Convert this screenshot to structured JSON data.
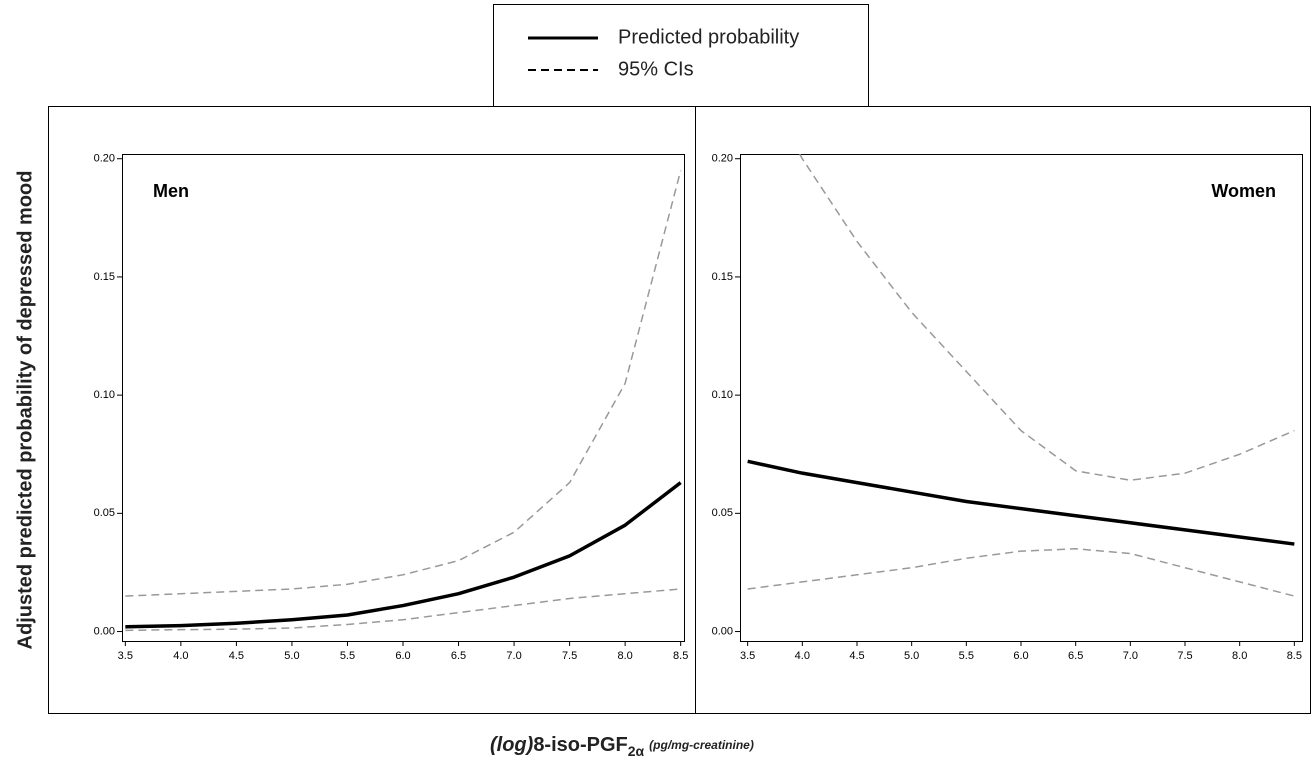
{
  "y_label": "Adjusted predicted probability of depressed mood",
  "x_label": {
    "prefix": "(log)",
    "main": "8-iso-PGF",
    "subscript": "2α",
    "unit": "(pg/mg-creatinine)"
  },
  "chart_data": [
    {
      "type": "line",
      "annotation": "Men",
      "annotation_corner": "top-left",
      "x": [
        3.5,
        4.0,
        4.5,
        5.0,
        5.5,
        6.0,
        6.5,
        7.0,
        7.5,
        8.0,
        8.5
      ],
      "series": [
        {
          "name": "Predicted probability",
          "color": "#000000",
          "line_style": "solid",
          "values": [
            0.002,
            0.0025,
            0.0035,
            0.005,
            0.007,
            0.011,
            0.016,
            0.023,
            0.032,
            0.045,
            0.063
          ]
        },
        {
          "name": "95% CIs",
          "color": "#999999",
          "line_style": "dashed",
          "values": [
            0.015,
            0.016,
            0.017,
            0.018,
            0.02,
            0.024,
            0.03,
            0.042,
            0.063,
            0.105,
            0.195
          ]
        },
        {
          "name": "95% CIs",
          "color": "#999999",
          "line_style": "dashed",
          "values": [
            0.0005,
            0.0008,
            0.001,
            0.0015,
            0.003,
            0.005,
            0.008,
            0.011,
            0.014,
            0.016,
            0.018
          ]
        }
      ],
      "xlim": [
        3.47,
        8.53
      ],
      "ylim": [
        -0.004,
        0.202
      ],
      "xticks": [
        3.5,
        {
          "value": 4,
          "label": "4.0"
        },
        4.5,
        {
          "value": 5,
          "label": "5.0"
        },
        5.5,
        {
          "value": 6,
          "label": "6.0"
        },
        6.5,
        {
          "value": 7,
          "label": "7.0"
        },
        7.5,
        {
          "value": 8,
          "label": "8.0"
        },
        8.5
      ],
      "yticks": [
        {
          "value": 0,
          "label": "0.00"
        },
        0.05,
        {
          "value": 0.1,
          "label": "0.10"
        },
        0.15,
        {
          "value": 0.2,
          "label": "0.20"
        }
      ]
    },
    {
      "type": "line",
      "annotation": "Women",
      "annotation_corner": "top-right",
      "x": [
        3.5,
        4.0,
        4.5,
        5.0,
        5.5,
        6.0,
        6.5,
        7.0,
        7.5,
        8.0,
        8.5
      ],
      "series": [
        {
          "name": "Predicted probability",
          "color": "#000000",
          "line_style": "solid",
          "values": [
            0.072,
            0.067,
            0.063,
            0.059,
            0.055,
            0.052,
            0.049,
            0.046,
            0.043,
            0.04,
            0.037
          ]
        },
        {
          "name": "95% CIs",
          "color": "#999999",
          "line_style": "dashed",
          "values": [
            0.24,
            0.2,
            0.165,
            0.135,
            0.11,
            0.085,
            0.068,
            0.064,
            0.067,
            0.075,
            0.085
          ]
        },
        {
          "name": "95% CIs",
          "color": "#999999",
          "line_style": "dashed",
          "values": [
            0.018,
            0.021,
            0.024,
            0.027,
            0.031,
            0.034,
            0.035,
            0.033,
            0.027,
            0.021,
            0.015
          ]
        }
      ],
      "xlim": [
        3.43,
        8.57
      ],
      "ylim": [
        -0.004,
        0.202
      ],
      "xticks": [
        3.5,
        {
          "value": 4,
          "label": "4.0"
        },
        4.5,
        {
          "value": 5,
          "label": "5.0"
        },
        5.5,
        {
          "value": 6,
          "label": "6.0"
        },
        6.5,
        {
          "value": 7,
          "label": "7.0"
        },
        7.5,
        {
          "value": 8,
          "label": "8.0"
        },
        8.5
      ],
      "yticks": [
        {
          "value": 0,
          "label": "0.00"
        },
        0.05,
        {
          "value": 0.1,
          "label": "0.10"
        },
        0.15,
        {
          "value": 0.2,
          "label": "0.20"
        }
      ]
    }
  ]
}
